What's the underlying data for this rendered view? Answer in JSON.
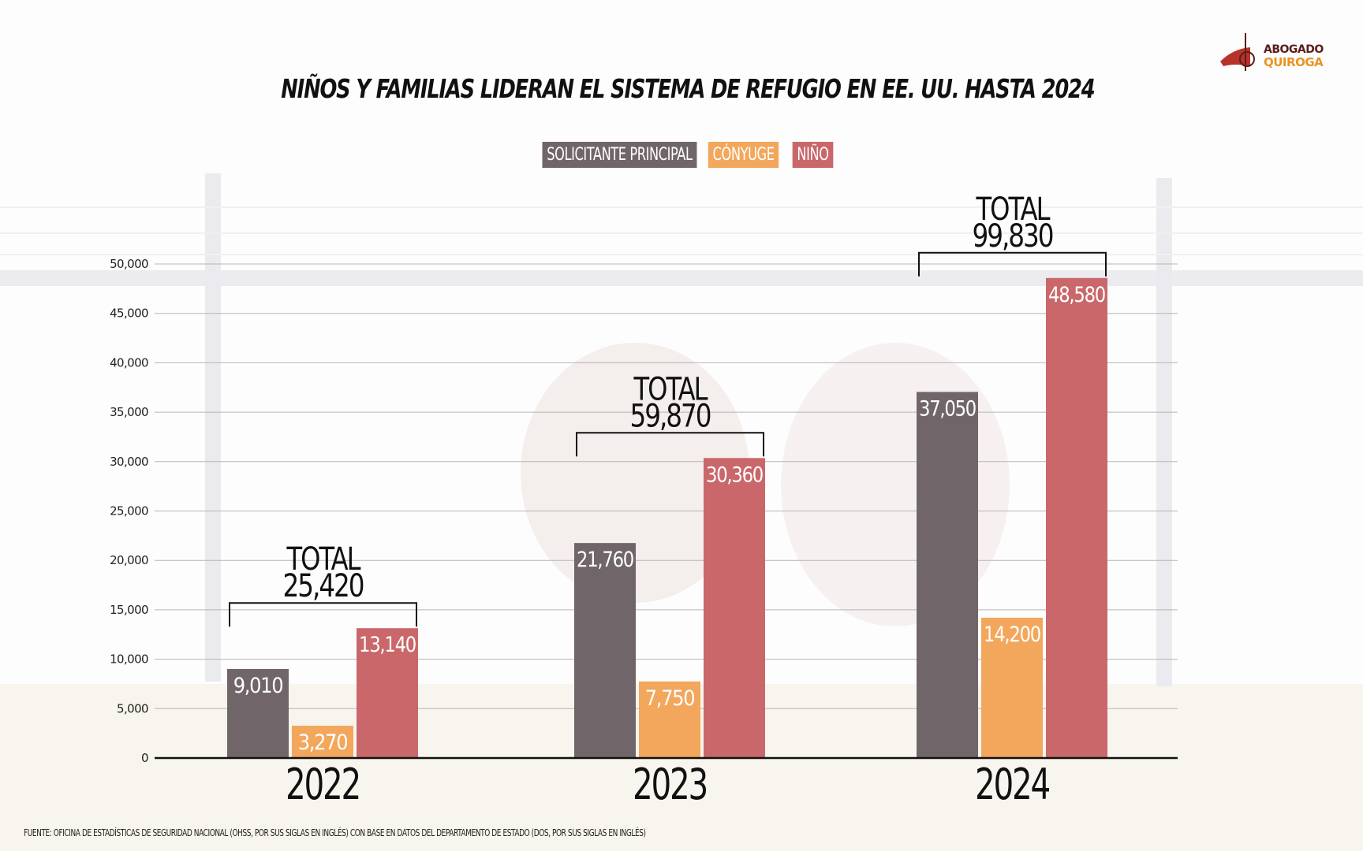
{
  "title": "NIÑOS Y FAMILIAS LIDERAN EL SISTEMA DE REFUGIO EN EE. UU. HASTA 2024",
  "logo": {
    "line1": "ABOGADO",
    "line2": "QUIROGA",
    "mark": "®"
  },
  "source": "FUENTE: OFICINA DE ESTADÍSTICAS DE SEGURIDAD NACIONAL (OHSS, POR SUS SIGLAS EN INGLÉS) CON BASE EN DATOS DEL DEPARTAMENTO DE ESTADO (DOS, POR SUS SIGLAS EN INGLÉS)",
  "colors": {
    "solicitante": "#706669",
    "conyuge": "#f2a75c",
    "nino": "#c9676a",
    "axis": "#111111",
    "grid": "#b5b5b5"
  },
  "chart_data": {
    "type": "bar",
    "title": "NIÑOS Y FAMILIAS LIDERAN EL SISTEMA DE REFUGIO EN EE. UU. HASTA 2024",
    "xlabel": "",
    "ylabel": "",
    "categories": [
      "2022",
      "2023",
      "2024"
    ],
    "series": [
      {
        "name": "SOLICITANTE PRINCIPAL",
        "color_key": "solicitante",
        "values": [
          9010,
          21760,
          37050
        ],
        "labels": [
          "9,010",
          "21,760",
          "37,050"
        ]
      },
      {
        "name": "CÓNYUGE",
        "color_key": "conyuge",
        "values": [
          3270,
          7750,
          14200
        ],
        "labels": [
          "3,270",
          "7,750",
          "14,200"
        ]
      },
      {
        "name": "NIÑO",
        "color_key": "nino",
        "values": [
          13140,
          30360,
          48580
        ],
        "labels": [
          "13,140",
          "30,360",
          "48,580"
        ]
      }
    ],
    "totals": [
      {
        "label": "TOTAL",
        "value": 25420,
        "text": "25,420"
      },
      {
        "label": "TOTAL",
        "value": 59870,
        "text": "59,870"
      },
      {
        "label": "TOTAL",
        "value": 99830,
        "text": "99,830"
      }
    ],
    "ylim": [
      0,
      50000
    ],
    "yticks": [
      0,
      5000,
      10000,
      15000,
      20000,
      25000,
      30000,
      35000,
      40000,
      45000,
      50000
    ],
    "ytick_labels": [
      "0",
      "5,000",
      "10,000",
      "15,000",
      "20,000",
      "25,000",
      "30,000",
      "35,000",
      "40,000",
      "45,000",
      "50,000"
    ],
    "grid": true,
    "legend": "top-center"
  }
}
